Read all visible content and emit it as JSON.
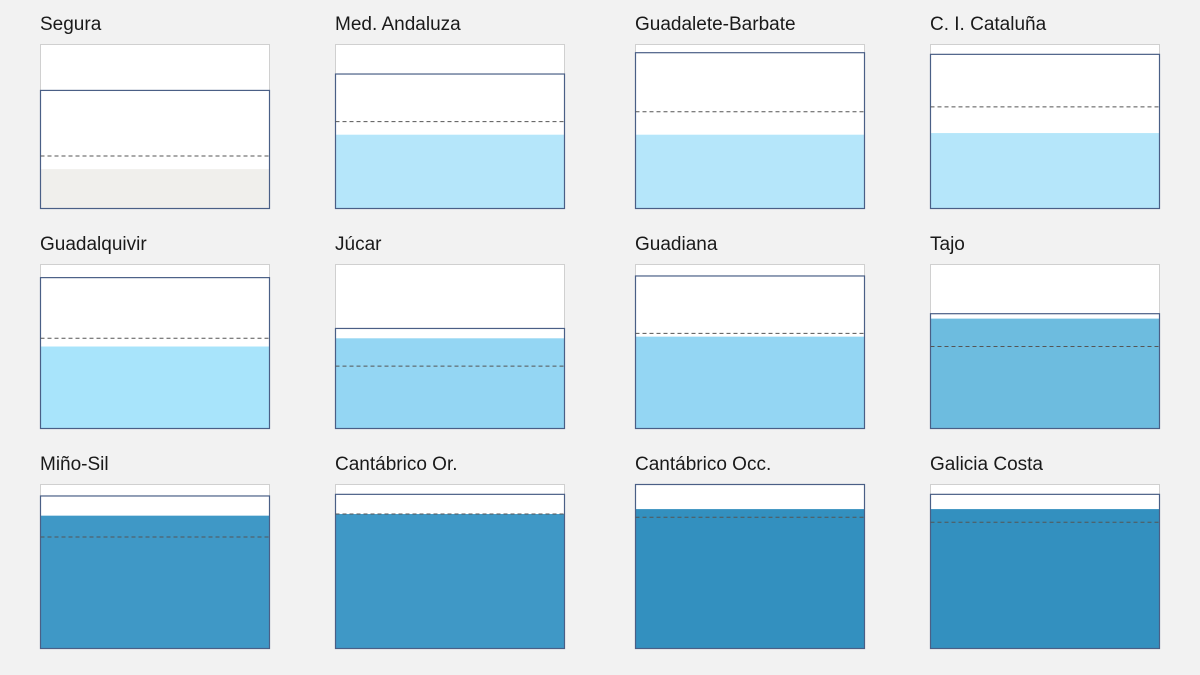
{
  "chart_data": {
    "type": "small-multiples",
    "panels": [
      {
        "name": "Segura",
        "fill": 0.24,
        "capacity": 0.72,
        "reference": 0.32,
        "color": "#f0efec"
      },
      {
        "name": "Med. Andaluza",
        "fill": 0.45,
        "capacity": 0.82,
        "reference": 0.53,
        "color": "#b5e6fa"
      },
      {
        "name": "Guadalete-Barbate",
        "fill": 0.45,
        "capacity": 0.95,
        "reference": 0.59,
        "color": "#b5e6fa"
      },
      {
        "name": "C. I. Cataluña",
        "fill": 0.46,
        "capacity": 0.94,
        "reference": 0.62,
        "color": "#b5e6fa"
      },
      {
        "name": "Guadalquivir",
        "fill": 0.5,
        "capacity": 0.92,
        "reference": 0.55,
        "color": "#a8e4fb"
      },
      {
        "name": "Júcar",
        "fill": 0.55,
        "capacity": 0.61,
        "reference": 0.38,
        "color": "#94d6f3"
      },
      {
        "name": "Guadiana",
        "fill": 0.56,
        "capacity": 0.93,
        "reference": 0.58,
        "color": "#94d6f3"
      },
      {
        "name": "Tajo",
        "fill": 0.67,
        "capacity": 0.7,
        "reference": 0.5,
        "color": "#6dbcdf"
      },
      {
        "name": "Miño-Sil",
        "fill": 0.81,
        "capacity": 0.93,
        "reference": 0.68,
        "color": "#3f98c6"
      },
      {
        "name": "Cantábrico Or.",
        "fill": 0.82,
        "capacity": 0.94,
        "reference": 0.82,
        "color": "#3f98c6"
      },
      {
        "name": "Cantábrico Occ.",
        "fill": 0.85,
        "capacity": 1.0,
        "reference": 0.8,
        "color": "#3390bf"
      },
      {
        "name": "Galicia Costa",
        "fill": 0.85,
        "capacity": 0.94,
        "reference": 0.77,
        "color": "#3390bf"
      }
    ]
  },
  "colors": {
    "background": "#f2f2f2",
    "box_background": "#ffffff",
    "box_border": "#d0d0d0",
    "capacity_line": "#4a5f86",
    "reference_line": "#555555"
  }
}
